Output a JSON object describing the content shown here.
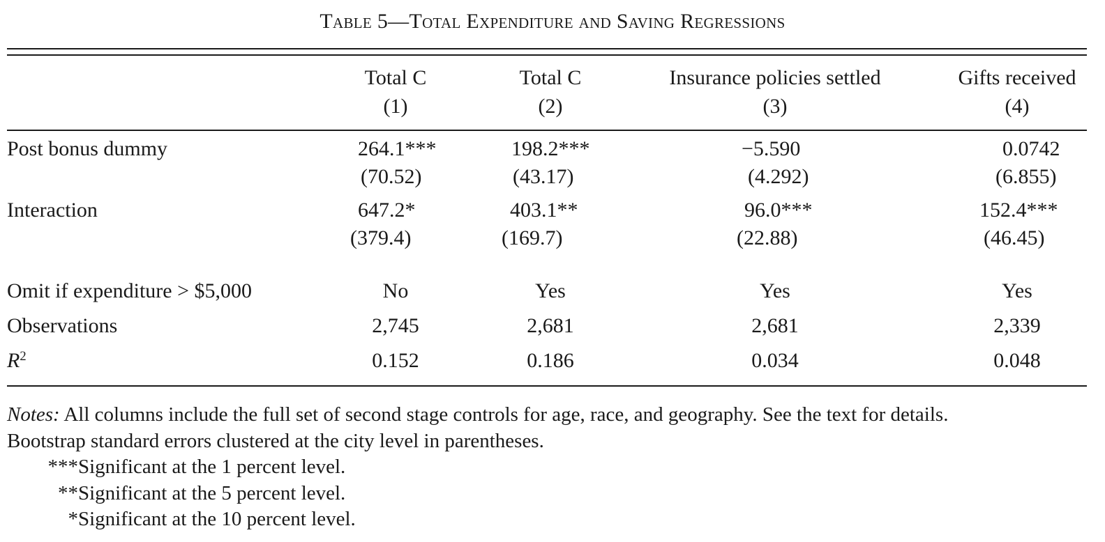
{
  "title": "Table 5—Total Expenditure and Saving Regressions",
  "columns": [
    {
      "name": "Total C",
      "number": "(1)"
    },
    {
      "name": "Total C",
      "number": "(2)"
    },
    {
      "name": "Insurance policies settled",
      "number": "(3)"
    },
    {
      "name": "Gifts received",
      "number": "(4)"
    }
  ],
  "rows": {
    "post_bonus": {
      "label": "Post bonus dummy",
      "coefs": [
        "264.1***",
        "198.2***",
        "−5.590",
        "0.0742"
      ],
      "ses": [
        "(70.52)",
        "(43.17)",
        "(4.292)",
        "(6.855)"
      ]
    },
    "interaction": {
      "label": "Interaction",
      "coefs": [
        "647.2*",
        "403.1**",
        "96.0***",
        "152.4***"
      ],
      "ses": [
        "(379.4)",
        "(169.7)",
        "(22.88)",
        "(46.45)"
      ]
    },
    "omit": {
      "label": "Omit if expenditure > $5,000",
      "values": [
        "No",
        "Yes",
        "Yes",
        "Yes"
      ]
    },
    "observations": {
      "label": "Observations",
      "values": [
        "2,745",
        "2,681",
        "2,681",
        "2,339"
      ]
    },
    "r2": {
      "label_main": "R",
      "label_sup": "2",
      "values": [
        "0.152",
        "0.186",
        "0.034",
        "0.048"
      ]
    }
  },
  "notes": {
    "lead": "Notes:",
    "line1": " All columns include the full set of second stage controls for age, race, and geography. See the text for details.",
    "line2": "Bootstrap standard errors clustered at the city level in parentheses.",
    "sig": [
      {
        "stars": "***",
        "text": "Significant at the 1 percent level."
      },
      {
        "stars": "**",
        "text": "Significant at the 5 percent level."
      },
      {
        "stars": "*",
        "text": "Significant at the 10 percent level."
      }
    ]
  }
}
